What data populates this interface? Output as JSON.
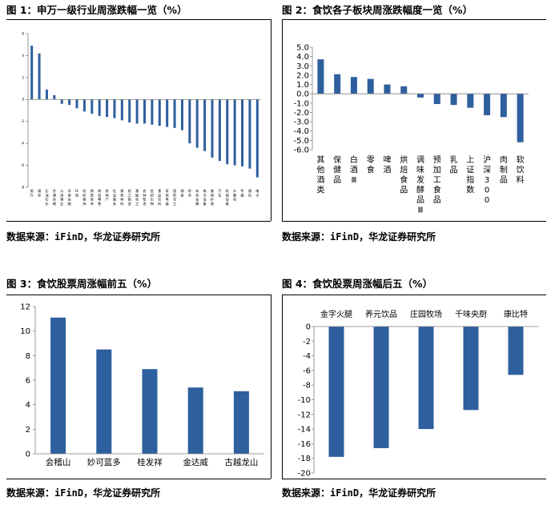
{
  "figures": [
    {
      "title": "图 1：申万一级行业周涨跌幅一览（%）",
      "source": "数据来源：iFinD，华龙证券研究所"
    },
    {
      "title": "图 2：食饮各子板块周涨跌幅度一览（%）",
      "source": "数据来源：iFinD，华龙证券研究所"
    },
    {
      "title": "图 3：食饮股票周涨幅前五（%）",
      "source": "数据来源：iFinD，华龙证券研究所"
    },
    {
      "title": "图 4：食饮股票周涨幅后五（%）",
      "source": "数据来源：iFinD，华龙证券研究所"
    }
  ],
  "colors": {
    "bar": "#2e5f9e",
    "axis": "#808080",
    "frame": "#000000"
  },
  "chart_data": [
    {
      "type": "bar",
      "title": "申万一级行业周涨跌幅一览（%）",
      "categories": [
        "银行",
        "煤炭",
        "石油石化",
        "交通运输",
        "公用事业",
        "非银金融",
        "环保",
        "纺织服饰",
        "建筑装饰",
        "商贸零售",
        "房地产",
        "社会服务",
        "建筑材料",
        "轻工制造",
        "基础化工",
        "农林牧渔",
        "医药生物",
        "食品饮料",
        "家用电器",
        "国防军工",
        "钢铁",
        "综合",
        "有色金属",
        "电力设备",
        "美容护理",
        "汽车",
        "机械设备",
        "计算机",
        "传媒",
        "通信",
        "电子"
      ],
      "values": [
        4.9,
        4.2,
        0.9,
        0.4,
        -0.4,
        -0.5,
        -0.8,
        -1.1,
        -1.3,
        -1.5,
        -1.6,
        -1.7,
        -1.9,
        -2.1,
        -2.2,
        -2.2,
        -2.3,
        -2.4,
        -2.5,
        -2.6,
        -2.8,
        -4.0,
        -4.4,
        -4.7,
        -5.3,
        -5.6,
        -5.9,
        -6.0,
        -6.1,
        -6.3,
        -7.1
      ],
      "ylim": [
        -8,
        6
      ],
      "yticks": [
        "6",
        "4",
        "2",
        "0",
        "-2",
        "-4",
        "-6",
        "-8"
      ],
      "ytick_values": [
        6,
        4,
        2,
        0,
        -2,
        -4,
        -6,
        -8
      ]
    },
    {
      "type": "bar",
      "title": "食饮各子板块周涨跌幅度一览（%）",
      "categories": [
        "其他酒类",
        "保健品",
        "白酒Ⅲ",
        "零食",
        "啤酒",
        "烘焙食品",
        "调味发酵品Ⅲ",
        "预加工食品",
        "乳品",
        "上证指数",
        "沪深300",
        "肉制品",
        "软饮料"
      ],
      "values": [
        3.7,
        2.1,
        1.8,
        1.6,
        1.0,
        0.8,
        -0.4,
        -1.1,
        -1.2,
        -1.5,
        -2.3,
        -2.5,
        -5.2
      ],
      "ylim": [
        -6,
        5
      ],
      "yticks": [
        "5.0",
        "4.0",
        "3.0",
        "2.0",
        "1.0",
        "0.0",
        "-1.0",
        "-2.0",
        "-3.0",
        "-4.0",
        "-5.0",
        "-6.0"
      ],
      "ytick_values": [
        5,
        4,
        3,
        2,
        1,
        0,
        -1,
        -2,
        -3,
        -4,
        -5,
        -6
      ]
    },
    {
      "type": "bar",
      "title": "食饮股票周涨幅前五（%）",
      "categories": [
        "会稽山",
        "妙可蓝多",
        "桂发祥",
        "金达威",
        "古越龙山"
      ],
      "values": [
        11.1,
        8.5,
        6.9,
        5.4,
        5.1
      ],
      "ylim": [
        0,
        12
      ],
      "yticks": [
        "12",
        "10",
        "8",
        "6",
        "4",
        "2",
        "0"
      ],
      "ytick_values": [
        12,
        10,
        8,
        6,
        4,
        2,
        0
      ]
    },
    {
      "type": "bar",
      "title": "食饮股票周涨幅后五（%）",
      "categories": [
        "金字火腿",
        "养元饮品",
        "庄园牧场",
        "千味央厨",
        "康比特"
      ],
      "values": [
        -17.8,
        -16.6,
        -14.0,
        -11.4,
        -6.6
      ],
      "ylim": [
        -20,
        0
      ],
      "yticks": [
        "0",
        "-2",
        "-4",
        "-6",
        "-8",
        "-10",
        "-12",
        "-14",
        "-16",
        "-18",
        "-20"
      ],
      "ytick_values": [
        0,
        -2,
        -4,
        -6,
        -8,
        -10,
        -12,
        -14,
        -16,
        -18,
        -20
      ]
    }
  ]
}
